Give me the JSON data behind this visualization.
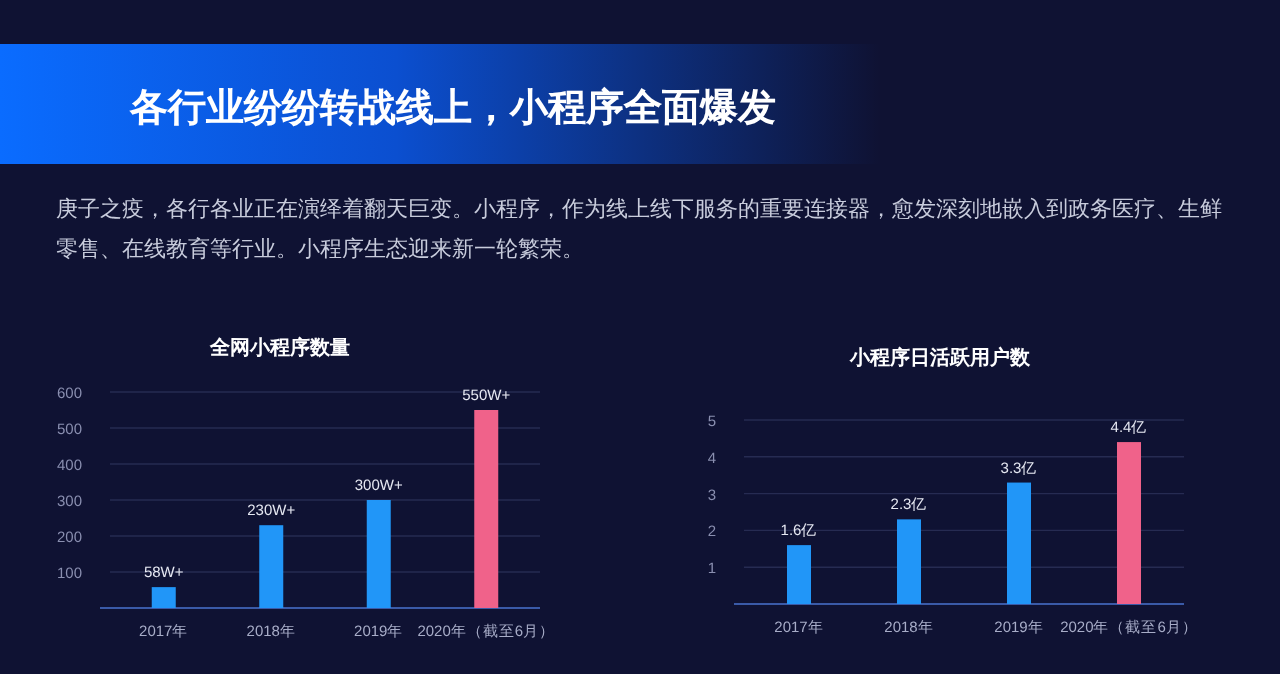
{
  "chart_data": [
    {
      "type": "other",
      "title": "各行业纷纷转战线上，小程序全面爆发",
      "annotations": [
        "庚子之疫，各行各业正在演绎着翻天巨变。小程序，作为线上线下服务的重要连接器，愈发深刻地嵌入到政务医疗、生鲜零售、在线教育等行业。小程序生态迎来新一轮繁荣。"
      ]
    },
    {
      "type": "bar",
      "title": "全网小程序数量",
      "categories": [
        "2017年",
        "2018年",
        "2019年",
        "2020年（截至6月）"
      ],
      "values": [
        58,
        230,
        300,
        550
      ],
      "value_labels": [
        "58W+",
        "230W+",
        "300W+",
        "550W+"
      ],
      "colors": [
        "#2196f8",
        "#2196f8",
        "#2196f8",
        "#f0628a"
      ],
      "ylim": [
        0,
        600
      ],
      "yticks": [
        100,
        200,
        300,
        400,
        500,
        600
      ],
      "grid": "y"
    },
    {
      "type": "bar",
      "title": "小程序日活跃用户数",
      "categories": [
        "2017年",
        "2018年",
        "2019年",
        "2020年（截至6月）"
      ],
      "values": [
        1.6,
        2.3,
        3.3,
        4.4
      ],
      "value_labels": [
        "1.6亿",
        "2.3亿",
        "3.3亿",
        "4.4亿"
      ],
      "colors": [
        "#2196f8",
        "#2196f8",
        "#2196f8",
        "#f0628a"
      ],
      "ylim": [
        0,
        5
      ],
      "yticks": [
        1,
        2,
        3,
        4,
        5
      ],
      "grid": "y"
    }
  ]
}
